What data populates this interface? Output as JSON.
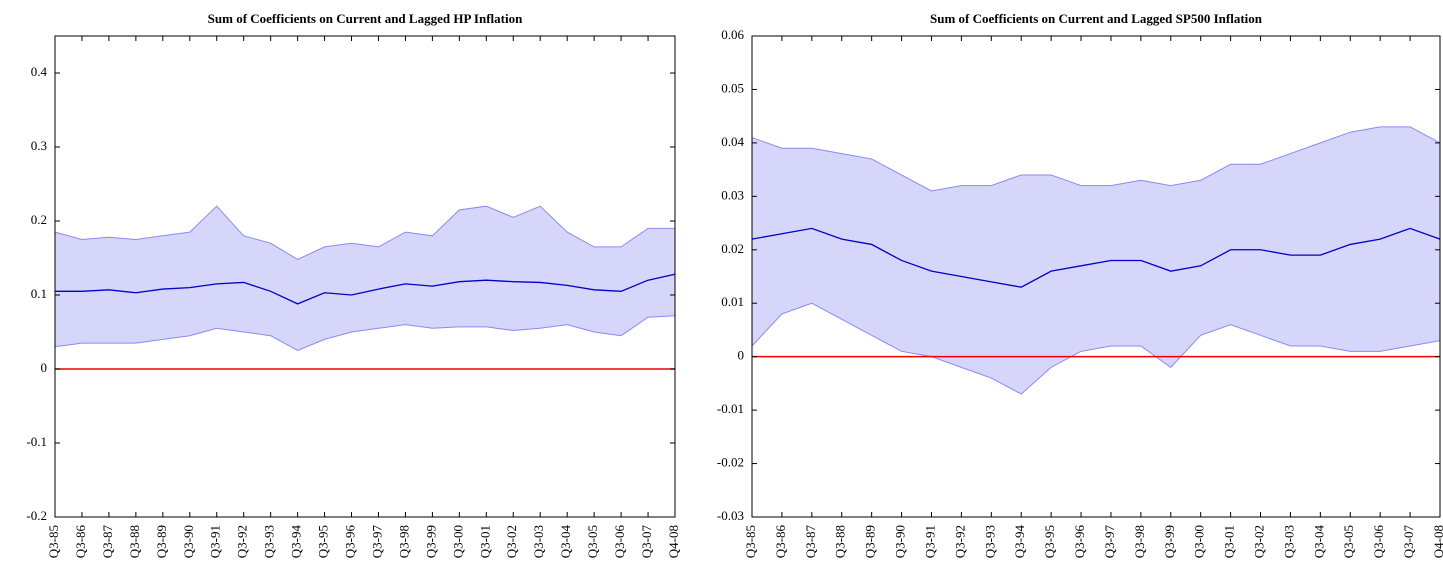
{
  "chart_data": [
    {
      "type": "line",
      "title": "Sum of Coefficients on Current and Lagged HP Inflation",
      "categories": [
        "Q3-85",
        "Q3-86",
        "Q3-87",
        "Q3-88",
        "Q3-89",
        "Q3-90",
        "Q3-91",
        "Q3-92",
        "Q3-93",
        "Q3-94",
        "Q3-95",
        "Q3-96",
        "Q3-97",
        "Q3-98",
        "Q3-99",
        "Q3-00",
        "Q3-01",
        "Q3-02",
        "Q3-03",
        "Q3-04",
        "Q3-05",
        "Q3-06",
        "Q3-07",
        "Q4-08"
      ],
      "series": [
        {
          "color": "#0000c8",
          "values": [
            0.105,
            0.105,
            0.107,
            0.103,
            0.108,
            0.11,
            0.115,
            0.117,
            0.105,
            0.088,
            0.103,
            0.1,
            0.108,
            0.115,
            0.112,
            0.118,
            0.12,
            0.118,
            0.117,
            0.113,
            0.107,
            0.105,
            0.12,
            0.128
          ]
        }
      ],
      "band": {
        "color": "#d6d6fb",
        "edge": "#8a8af0",
        "lower": [
          0.03,
          0.035,
          0.035,
          0.035,
          0.04,
          0.045,
          0.055,
          0.05,
          0.045,
          0.025,
          0.04,
          0.05,
          0.055,
          0.06,
          0.055,
          0.057,
          0.057,
          0.052,
          0.055,
          0.06,
          0.05,
          0.045,
          0.07,
          0.072
        ],
        "upper": [
          0.185,
          0.175,
          0.178,
          0.175,
          0.18,
          0.185,
          0.22,
          0.18,
          0.17,
          0.148,
          0.165,
          0.17,
          0.165,
          0.185,
          0.18,
          0.215,
          0.22,
          0.205,
          0.22,
          0.185,
          0.165,
          0.165,
          0.19,
          0.19
        ]
      },
      "hline": {
        "value": 0,
        "color": "#ee0000"
      },
      "ylim": [
        -0.2,
        0.45
      ],
      "yticks": [
        -0.2,
        -0.1,
        0,
        0.1,
        0.2,
        0.3,
        0.4
      ]
    },
    {
      "type": "line",
      "title": "Sum of Coefficients on Current and Lagged SP500 Inflation",
      "categories": [
        "Q3-85",
        "Q3-86",
        "Q3-87",
        "Q3-88",
        "Q3-89",
        "Q3-90",
        "Q3-91",
        "Q3-92",
        "Q3-93",
        "Q3-94",
        "Q3-95",
        "Q3-96",
        "Q3-97",
        "Q3-98",
        "Q3-99",
        "Q3-00",
        "Q3-01",
        "Q3-02",
        "Q3-03",
        "Q3-04",
        "Q3-05",
        "Q3-06",
        "Q3-07",
        "Q4-08"
      ],
      "series": [
        {
          "color": "#0000c8",
          "values": [
            0.022,
            0.023,
            0.024,
            0.022,
            0.021,
            0.018,
            0.016,
            0.015,
            0.014,
            0.013,
            0.016,
            0.017,
            0.018,
            0.018,
            0.016,
            0.017,
            0.02,
            0.02,
            0.019,
            0.019,
            0.021,
            0.022,
            0.024,
            0.022
          ]
        }
      ],
      "band": {
        "color": "#d6d6fb",
        "edge": "#8a8af0",
        "lower": [
          0.002,
          0.008,
          0.01,
          0.007,
          0.004,
          0.001,
          0,
          -0.002,
          -0.004,
          -0.007,
          -0.002,
          0.001,
          0.002,
          0.002,
          -0.002,
          0.004,
          0.006,
          0.004,
          0.002,
          0.002,
          0.001,
          0.001,
          0.002,
          0.003
        ],
        "upper": [
          0.041,
          0.039,
          0.039,
          0.038,
          0.037,
          0.034,
          0.031,
          0.032,
          0.032,
          0.034,
          0.034,
          0.032,
          0.032,
          0.033,
          0.032,
          0.033,
          0.036,
          0.036,
          0.038,
          0.04,
          0.042,
          0.043,
          0.043,
          0.04
        ]
      },
      "hline": {
        "value": 0,
        "color": "#ee0000"
      },
      "ylim": [
        -0.03,
        0.06
      ],
      "yticks": [
        -0.03,
        -0.02,
        -0.01,
        0,
        0.01,
        0.02,
        0.03,
        0.04,
        0.05,
        0.06
      ]
    }
  ]
}
